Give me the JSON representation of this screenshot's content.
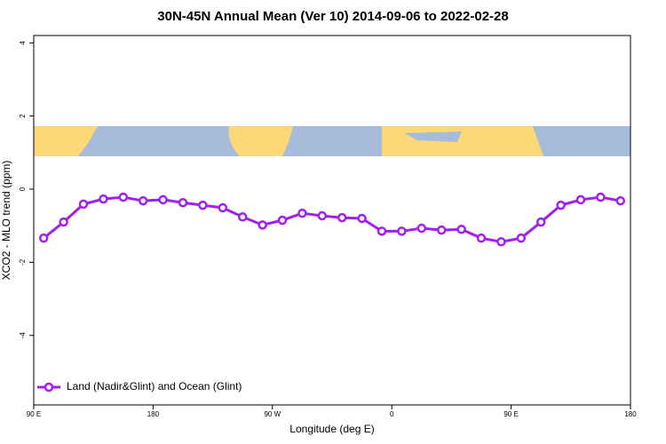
{
  "chart_data": {
    "type": "line",
    "title": "30N-45N Annual Mean (Ver 10)   2014-09-06 to 2022-02-28",
    "x_label": "Longitude (deg E)",
    "y_label": "XCO2 - MLO trend (ppm)",
    "x": [
      97.5,
      112.5,
      127.5,
      142.5,
      157.5,
      172.5,
      187.5,
      202.5,
      217.5,
      232.5,
      247.5,
      262.5,
      277.5,
      292.5,
      307.5,
      322.5,
      337.5,
      352.5,
      367.5,
      382.5,
      397.5,
      412.5,
      427.5,
      442.5,
      457.5,
      472.5,
      487.5,
      502.5,
      517.5,
      532.5
    ],
    "series": [
      {
        "name": "Land (Nadir&Glint) and Ocean (Glint)",
        "color": "#a020f0",
        "values": [
          -1.34,
          -0.9,
          -0.41,
          -0.27,
          -0.22,
          -0.32,
          -0.29,
          -0.37,
          -0.44,
          -0.51,
          -0.76,
          -0.98,
          -0.85,
          -0.66,
          -0.73,
          -0.78,
          -0.8,
          -1.15,
          -1.15,
          -1.07,
          -1.12,
          -1.1,
          -1.34,
          -1.44,
          -1.34,
          -0.9,
          -0.44,
          -0.29,
          -0.22,
          -0.32
        ]
      }
    ],
    "xlim": [
      90,
      540
    ],
    "xticks": [
      {
        "value": 90,
        "label": "90 E"
      },
      {
        "value": 180,
        "label": "180"
      },
      {
        "value": 270,
        "label": "90 W"
      },
      {
        "value": 360,
        "label": "0"
      },
      {
        "value": 450,
        "label": "90 E"
      },
      {
        "value": 540,
        "label": "180"
      }
    ],
    "ylim": [
      -5.9,
      4.2
    ],
    "yticks": [
      -4,
      -2,
      0,
      2,
      4
    ],
    "legend": "bottom-left"
  }
}
